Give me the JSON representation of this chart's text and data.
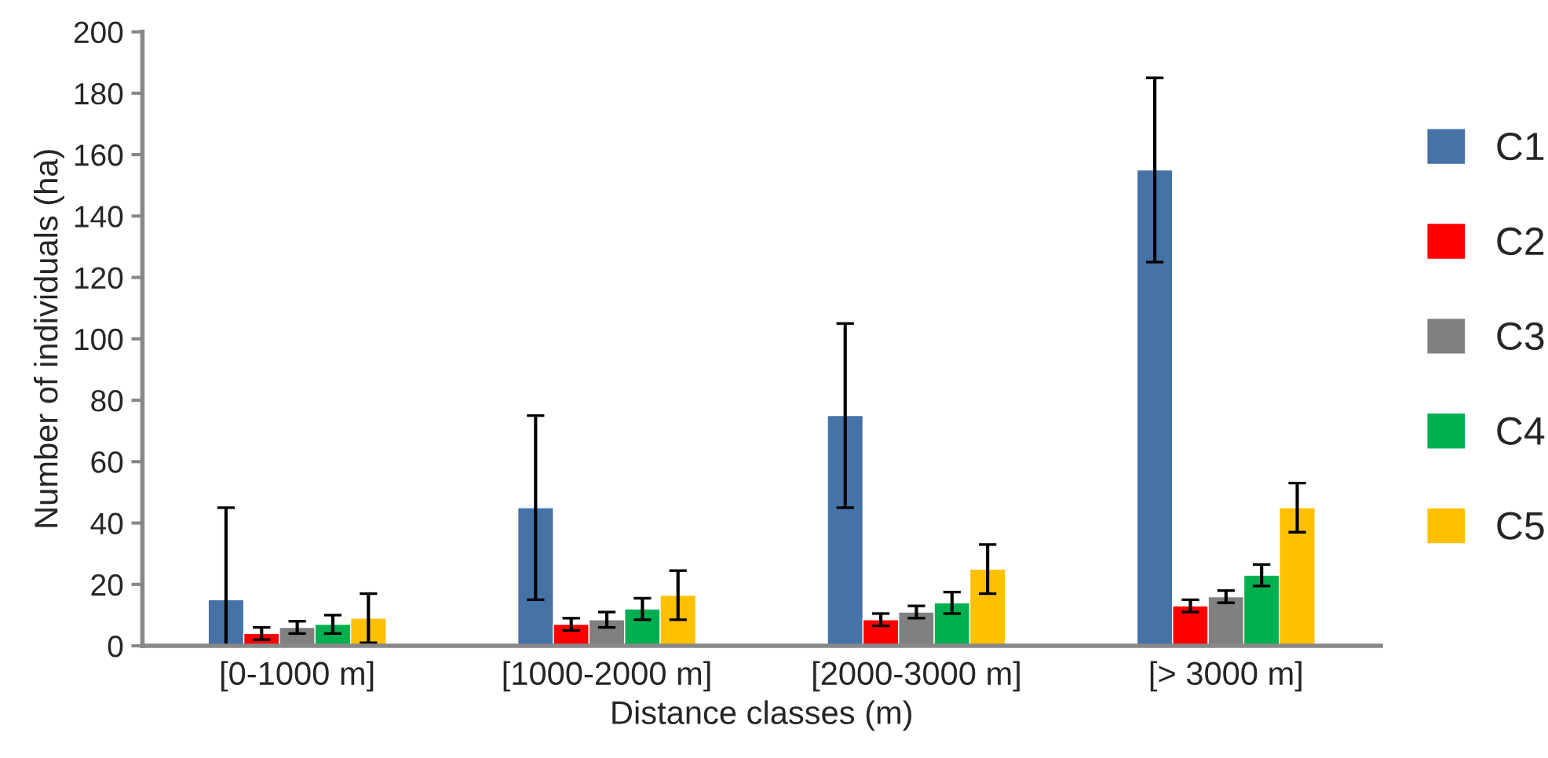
{
  "chart_data": {
    "type": "bar",
    "xlabel": "Distance classes (m)",
    "ylabel": "Number of individuals (ha)",
    "categories": [
      "[0-1000 m]",
      "[1000-2000 m]",
      "[2000-3000 m]",
      "[> 3000 m]"
    ],
    "series": [
      {
        "name": "C1",
        "color": "#4572a7",
        "values": [
          15,
          45,
          75,
          155
        ],
        "errors": [
          [
            0,
            45
          ],
          30,
          30,
          30
        ]
      },
      {
        "name": "C2",
        "color": "#ff0000",
        "values": [
          4,
          7,
          8.5,
          13
        ],
        "errors": [
          2,
          2,
          2,
          2
        ]
      },
      {
        "name": "C3",
        "color": "#808080",
        "values": [
          6,
          8.5,
          11,
          16
        ],
        "errors": [
          2,
          2.5,
          2,
          2
        ]
      },
      {
        "name": "C4",
        "color": "#00b050",
        "values": [
          7,
          12,
          14,
          23
        ],
        "errors": [
          3,
          3.5,
          3.5,
          3.5
        ]
      },
      {
        "name": "C5",
        "color": "#ffc000",
        "values": [
          9,
          16.5,
          25,
          45
        ],
        "errors": [
          8,
          8,
          8,
          8
        ]
      }
    ],
    "ylim": [
      0,
      200
    ],
    "yticks": [
      0,
      20,
      40,
      60,
      80,
      100,
      120,
      140,
      160,
      180,
      200
    ],
    "grid": false,
    "legend": "right"
  }
}
